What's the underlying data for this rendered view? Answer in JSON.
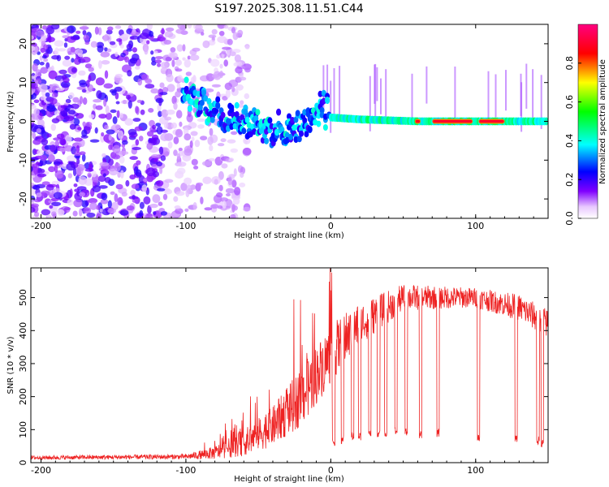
{
  "title": "S197.2025.308.11.51.C44",
  "chart_data": [
    {
      "type": "heatmap",
      "xlabel": "Height of straight line (km)",
      "ylabel": "Frequency (Hz)",
      "xlim": [
        -207,
        150
      ],
      "ylim": [
        -25,
        25
      ],
      "xticks": [
        -200,
        -100,
        0,
        100
      ],
      "yticks": [
        -20,
        -10,
        0,
        10,
        20
      ],
      "colorbar": {
        "label": "Normalized spectral amplitude",
        "range": [
          0,
          1
        ],
        "ticks": [
          "0.0",
          "0.2",
          "0.4",
          "0.6",
          "0.8"
        ],
        "tick_values": [
          0,
          0.2,
          0.4,
          0.6,
          0.8
        ],
        "colors": [
          "#ffffff",
          "#8000ff",
          "#0000ff",
          "#00ffff",
          "#00ff00",
          "#ffff00",
          "#ff0000",
          "#ff0080"
        ]
      },
      "signal_track": [
        {
          "x": -100,
          "y": 7
        },
        {
          "x": -90,
          "y": 5
        },
        {
          "x": -80,
          "y": 3
        },
        {
          "x": -70,
          "y": 1
        },
        {
          "x": -55,
          "y": 0
        },
        {
          "x": -45,
          "y": -2
        },
        {
          "x": -35,
          "y": -2
        },
        {
          "x": -25,
          "y": -1.5
        },
        {
          "x": -15,
          "y": 0
        },
        {
          "x": -8,
          "y": 2
        },
        {
          "x": -5,
          "y": 3
        },
        {
          "x": 0,
          "y": 1
        },
        {
          "x": 20,
          "y": 0.5
        },
        {
          "x": 60,
          "y": 0
        },
        {
          "x": 100,
          "y": 0
        },
        {
          "x": 150,
          "y": 0
        }
      ],
      "peak_segments": [
        {
          "x0": 58,
          "x1": 62
        },
        {
          "x0": 70,
          "x1": 98
        },
        {
          "x0": 102,
          "x1": 120
        }
      ]
    },
    {
      "type": "line",
      "xlabel": "Height of straight line (km)",
      "ylabel": "SNR (10 * v/v)",
      "xlim": [
        -207,
        150
      ],
      "ylim": [
        0,
        590
      ],
      "xticks": [
        -200,
        -100,
        0,
        100
      ],
      "yticks": [
        0,
        100,
        200,
        300,
        400,
        500
      ],
      "color": "#ee2222",
      "series": [
        {
          "name": "SNR",
          "envelope": [
            {
              "x": -207,
              "base": 15,
              "spread": 12
            },
            {
              "x": -100,
              "base": 18,
              "spread": 15
            },
            {
              "x": -80,
              "base": 30,
              "spread": 40
            },
            {
              "x": -60,
              "base": 60,
              "spread": 80
            },
            {
              "x": -40,
              "base": 110,
              "spread": 120
            },
            {
              "x": -20,
              "base": 200,
              "spread": 180
            },
            {
              "x": 0,
              "base": 330,
              "spread": 180
            },
            {
              "x": 20,
              "base": 420,
              "spread": 130
            },
            {
              "x": 50,
              "base": 500,
              "spread": 80
            },
            {
              "x": 100,
              "base": 500,
              "spread": 60
            },
            {
              "x": 130,
              "base": 470,
              "spread": 80
            },
            {
              "x": 150,
              "base": 420,
              "spread": 90
            }
          ],
          "dropouts": [
            {
              "x": 2,
              "value": 60
            },
            {
              "x": 8,
              "value": 70
            },
            {
              "x": 15,
              "value": 80
            },
            {
              "x": 20,
              "value": 80
            },
            {
              "x": 27,
              "value": 90
            },
            {
              "x": 33,
              "value": 90
            },
            {
              "x": 38,
              "value": 90
            },
            {
              "x": 45,
              "value": 95
            },
            {
              "x": 52,
              "value": 95
            },
            {
              "x": 62,
              "value": 85
            },
            {
              "x": 74,
              "value": 90
            },
            {
              "x": 102,
              "value": 75
            },
            {
              "x": 128,
              "value": 70
            },
            {
              "x": 143,
              "value": 65
            },
            {
              "x": 146,
              "value": 60
            }
          ]
        }
      ]
    }
  ]
}
